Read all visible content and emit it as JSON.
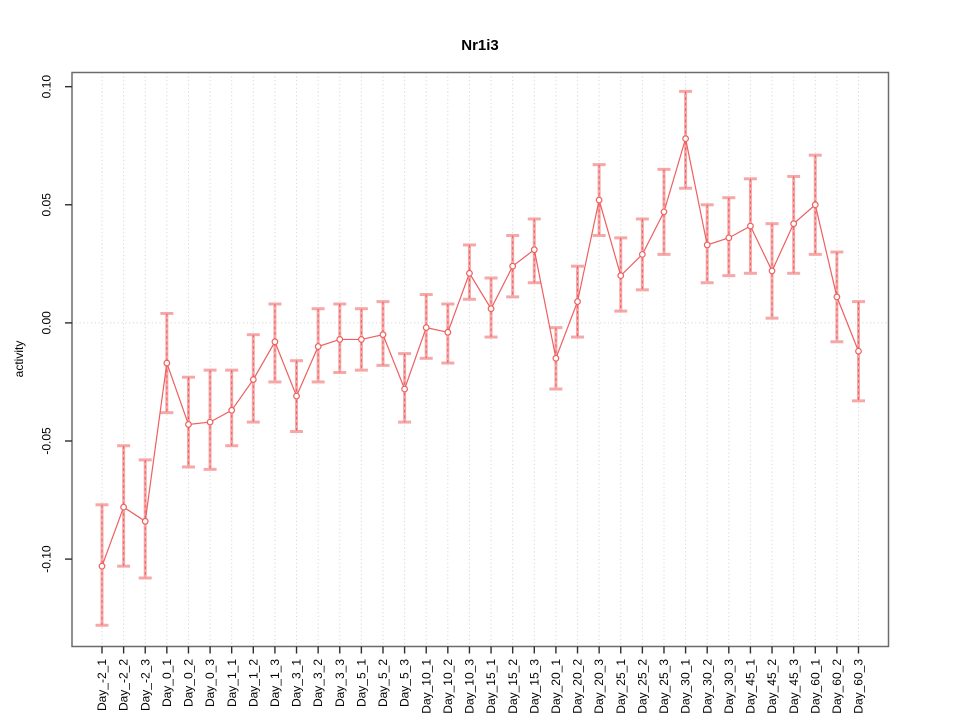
{
  "chart_data": {
    "type": "line",
    "title": "Nr1i3",
    "xlabel": "",
    "ylabel": "activity",
    "legend": "none",
    "grid": "vertical dotted gridline at every category; horizontal dotted line at y=0",
    "marker": "open-circle",
    "error_bars": true,
    "categories": [
      "Day_-2_1",
      "Day_-2_2",
      "Day_-2_3",
      "Day_0_1",
      "Day_0_2",
      "Day_0_3",
      "Day_1_1",
      "Day_1_2",
      "Day_1_3",
      "Day_3_1",
      "Day_3_2",
      "Day_3_3",
      "Day_5_1",
      "Day_5_2",
      "Day_5_3",
      "Day_10_1",
      "Day_10_2",
      "Day_10_3",
      "Day_15_1",
      "Day_15_2",
      "Day_15_3",
      "Day_20_1",
      "Day_20_2",
      "Day_20_3",
      "Day_25_1",
      "Day_25_2",
      "Day_25_3",
      "Day_30_1",
      "Day_30_2",
      "Day_30_3",
      "Day_45_1",
      "Day_45_2",
      "Day_45_3",
      "Day_60_1",
      "Day_60_2",
      "Day_60_3"
    ],
    "series": [
      {
        "name": "activity",
        "values": [
          -0.103,
          -0.078,
          -0.084,
          -0.017,
          -0.043,
          -0.042,
          -0.037,
          -0.024,
          -0.008,
          -0.031,
          -0.01,
          -0.007,
          -0.007,
          -0.005,
          -0.028,
          -0.002,
          -0.004,
          0.021,
          0.006,
          0.024,
          0.031,
          -0.015,
          0.009,
          0.052,
          0.02,
          0.029,
          0.047,
          0.078,
          0.033,
          0.036,
          0.041,
          0.022,
          0.042,
          0.05,
          0.011,
          -0.012
        ],
        "error_upper": [
          -0.077,
          -0.052,
          -0.058,
          0.004,
          -0.023,
          -0.02,
          -0.02,
          -0.005,
          0.008,
          -0.016,
          0.006,
          0.008,
          0.006,
          0.009,
          -0.013,
          0.012,
          0.008,
          0.033,
          0.019,
          0.037,
          0.044,
          -0.002,
          0.024,
          0.067,
          0.036,
          0.044,
          0.065,
          0.098,
          0.05,
          0.053,
          0.061,
          0.042,
          0.062,
          0.071,
          0.03,
          0.009
        ],
        "error_lower": [
          -0.128,
          -0.103,
          -0.108,
          -0.038,
          -0.061,
          -0.062,
          -0.052,
          -0.042,
          -0.025,
          -0.046,
          -0.025,
          -0.021,
          -0.02,
          -0.018,
          -0.042,
          -0.015,
          -0.017,
          0.01,
          -0.006,
          0.011,
          0.017,
          -0.028,
          -0.006,
          0.037,
          0.005,
          0.014,
          0.029,
          0.057,
          0.017,
          0.02,
          0.021,
          0.002,
          0.021,
          0.029,
          -0.008,
          -0.033
        ]
      }
    ],
    "ytick_values": [
      -0.1,
      -0.05,
      0.0,
      0.05,
      0.1
    ],
    "ytick_labels": [
      "-0.10",
      "-0.05",
      "0.00",
      "0.05",
      "0.10"
    ],
    "ylim": [
      -0.137,
      0.106
    ],
    "colors": {
      "line": "#ee5f5f",
      "marker_stroke": "#ee5f5f",
      "marker_fill": "#ffffff",
      "error_bar": "#f6a8a8",
      "error_center_dash": "#ee5f5f",
      "grid": "#d8d8d8",
      "zero_line": "#d8d8d8",
      "box": "#6b6b6b",
      "tick": "#2e2e2e",
      "text": "#000000",
      "background": "#ffffff"
    }
  }
}
